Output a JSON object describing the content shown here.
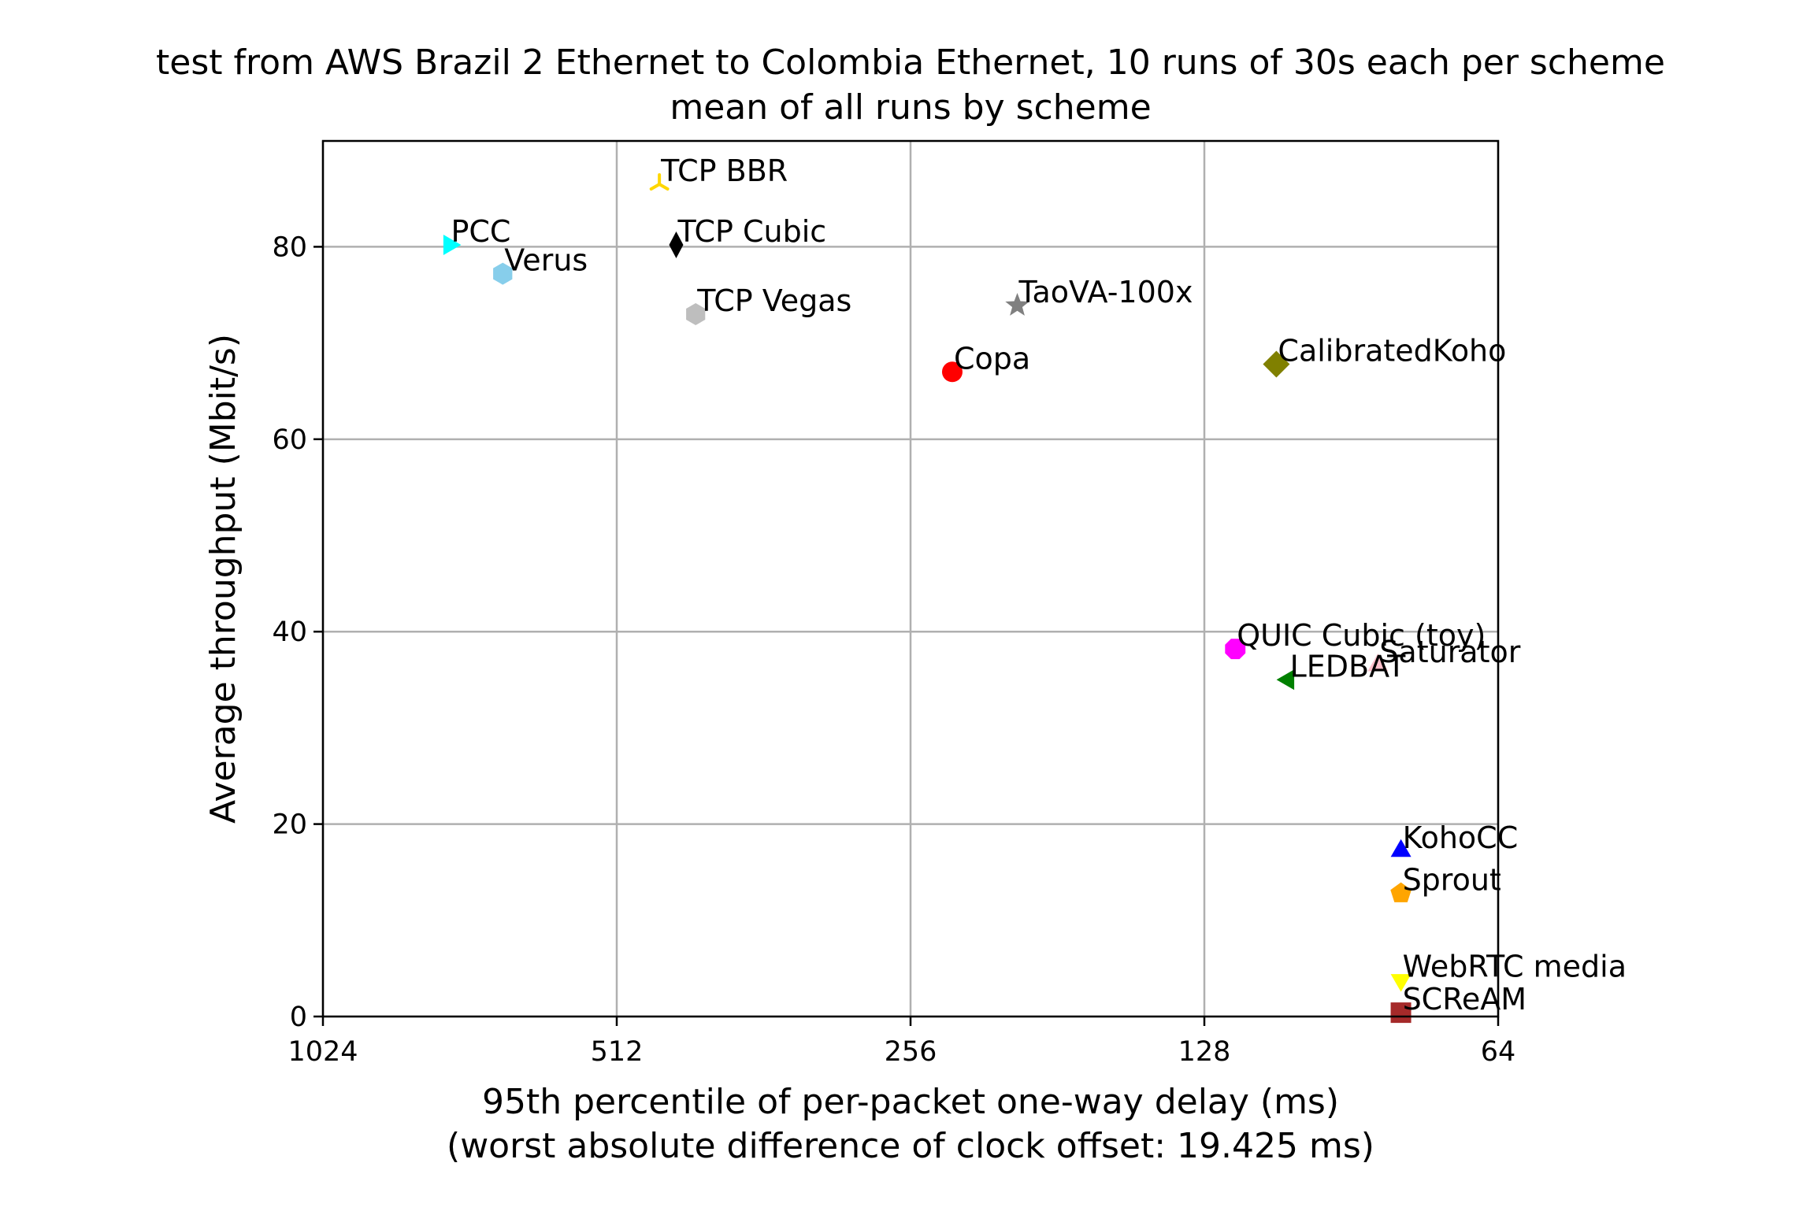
{
  "chart_data": {
    "type": "scatter",
    "title": [
      "test from AWS Brazil 2 Ethernet to Colombia Ethernet, 10 runs of 30s each per scheme",
      "mean of all runs by scheme"
    ],
    "xlabel": [
      "95th percentile of per-packet one-way delay (ms)",
      "(worst absolute difference of clock offset: 19.425 ms)"
    ],
    "ylabel": "Average throughput (Mbit/s)",
    "x_scale": "log2",
    "x_inverted": true,
    "xlim": [
      1024,
      64
    ],
    "ylim": [
      0,
      91
    ],
    "x_ticks": [
      1024,
      512,
      256,
      128,
      64
    ],
    "x_tick_labels": [
      "1024",
      "512",
      "256",
      "128",
      "64"
    ],
    "y_ticks": [
      0,
      20,
      40,
      60,
      80
    ],
    "y_tick_labels": [
      "0",
      "20",
      "40",
      "60",
      "80"
    ],
    "grid": true,
    "series": [
      {
        "name": "TCP BBR",
        "x": 463,
        "y": 86.5,
        "marker": "tri_down",
        "color": "#ffd700"
      },
      {
        "name": "PCC",
        "x": 760,
        "y": 80.2,
        "marker": "triangle_right",
        "color": "#00ffff"
      },
      {
        "name": "TCP Cubic",
        "x": 445,
        "y": 80.2,
        "marker": "thin_diamond",
        "color": "#000000"
      },
      {
        "name": "Verus",
        "x": 670,
        "y": 77.2,
        "marker": "hexagon",
        "color": "#87ceeb"
      },
      {
        "name": "TCP Vegas",
        "x": 425,
        "y": 73.0,
        "marker": "hexagon",
        "color": "#bebebe"
      },
      {
        "name": "TaoVA-100x",
        "x": 199,
        "y": 73.9,
        "marker": "star",
        "color": "#808080"
      },
      {
        "name": "Copa",
        "x": 232,
        "y": 67.0,
        "marker": "circle",
        "color": "#ff0000"
      },
      {
        "name": "CalibratedKoho",
        "x": 108,
        "y": 67.8,
        "marker": "diamond",
        "color": "#808000"
      },
      {
        "name": "QUIC Cubic (toy)",
        "x": 119,
        "y": 38.2,
        "marker": "octagon",
        "color": "#ff00ff"
      },
      {
        "name": "Saturator",
        "x": 85,
        "y": 36.5,
        "marker": "triangle_up",
        "color": "#ffc0cb"
      },
      {
        "name": "LEDBAT",
        "x": 105,
        "y": 35.0,
        "marker": "triangle_left",
        "color": "#008000"
      },
      {
        "name": "KohoCC",
        "x": 80.5,
        "y": 17.2,
        "marker": "triangle_up",
        "color": "#0000ff"
      },
      {
        "name": "Sprout",
        "x": 80.5,
        "y": 12.8,
        "marker": "pentagon",
        "color": "#ffa500"
      },
      {
        "name": "WebRTC media",
        "x": 80.5,
        "y": 3.8,
        "marker": "triangle_down",
        "color": "#ffff00"
      },
      {
        "name": "SCReAM",
        "x": 80.5,
        "y": 0.4,
        "marker": "square",
        "color": "#a52a2a"
      }
    ]
  }
}
